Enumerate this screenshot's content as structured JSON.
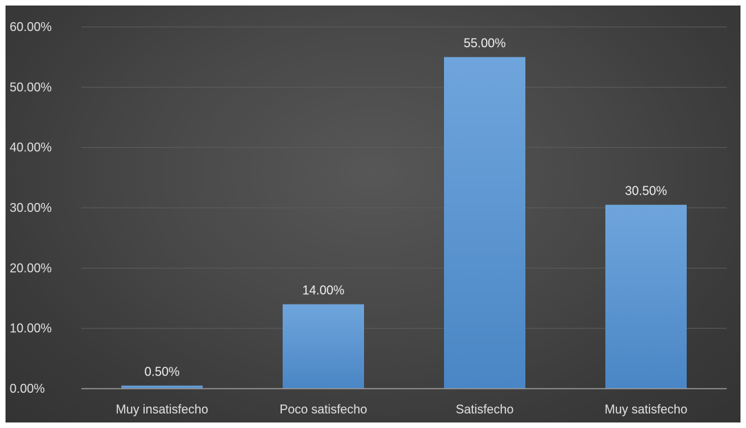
{
  "chart_data": {
    "type": "bar",
    "title": "",
    "xlabel": "",
    "ylabel": "",
    "categories": [
      "Muy insatisfecho",
      "Poco satisfecho",
      "Satisfecho",
      "Muy satisfecho"
    ],
    "values": [
      0.5,
      14.0,
      55.0,
      30.5
    ],
    "data_labels": [
      "0.50%",
      "14.00%",
      "55.00%",
      "30.50%"
    ],
    "ylim": [
      0,
      60
    ],
    "yticks": [
      0,
      10,
      20,
      30,
      40,
      50,
      60
    ],
    "ytick_labels": [
      "0.00%",
      "10.00%",
      "20.00%",
      "30.00%",
      "40.00%",
      "50.00%",
      "60.00%"
    ],
    "grid": true,
    "legend": "none",
    "colors": {
      "bar_top": "#6fa5dc",
      "bar_bottom": "#4a86c5",
      "grid": "#5c5c5c",
      "axis": "#9a9a9a",
      "text": "#e2e2e2"
    }
  }
}
